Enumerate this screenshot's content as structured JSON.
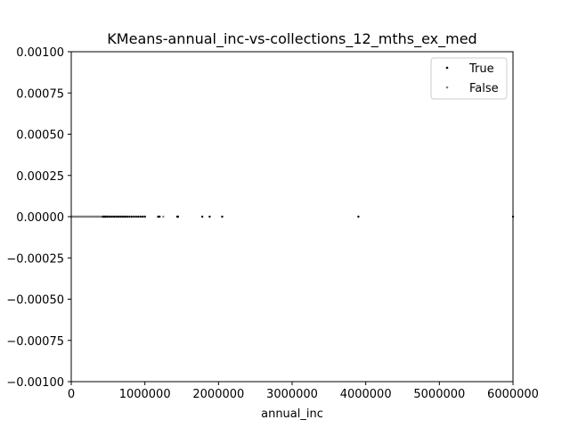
{
  "chart_data": {
    "type": "scatter",
    "title": "KMeans-annual_inc-vs-collections_12_mths_ex_med",
    "xlabel": "annual_inc",
    "ylabel": "",
    "xlim": [
      0,
      6000000
    ],
    "ylim": [
      -0.001,
      0.001
    ],
    "x_ticks": [
      0,
      1000000,
      2000000,
      3000000,
      4000000,
      5000000,
      6000000
    ],
    "x_tick_labels": [
      "0",
      "1000000",
      "2000000",
      "3000000",
      "4000000",
      "5000000",
      "6000000"
    ],
    "y_ticks": [
      0.001,
      0.00075,
      0.0005,
      0.00025,
      0.0,
      -0.00025,
      -0.0005,
      -0.00075,
      -0.001
    ],
    "y_tick_labels": [
      "0.00100",
      "0.00075",
      "0.00050",
      "0.00025",
      "0.00000",
      "−0.00025",
      "−0.00050",
      "−0.00075",
      "−0.00100"
    ],
    "grid": false,
    "legend_position": "upper right",
    "series": [
      {
        "name": "True",
        "color": "#000000",
        "x": [
          430000,
          450000,
          470000,
          490000,
          520000,
          550000,
          580000,
          610000,
          640000,
          670000,
          700000,
          730000,
          760000,
          790000,
          820000,
          850000,
          880000,
          910000,
          940000,
          970000,
          1000000,
          1180000,
          1200000,
          1440000,
          1450000,
          1780000,
          1880000,
          2050000,
          3900000,
          6000000
        ],
        "y": [
          0,
          0,
          0,
          0,
          0,
          0,
          0,
          0,
          0,
          0,
          0,
          0,
          0,
          0,
          0,
          0,
          0,
          0,
          0,
          0,
          0,
          0,
          0,
          0,
          0,
          0,
          0,
          0,
          0,
          0
        ]
      },
      {
        "name": "False",
        "color": "#808080",
        "x": [
          0,
          10000,
          20000,
          30000,
          40000,
          50000,
          60000,
          70000,
          80000,
          90000,
          100000,
          110000,
          120000,
          130000,
          140000,
          150000,
          160000,
          170000,
          180000,
          190000,
          200000,
          210000,
          220000,
          230000,
          240000,
          250000,
          260000,
          270000,
          280000,
          290000,
          300000,
          310000,
          320000,
          330000,
          340000,
          350000,
          360000,
          370000,
          380000,
          390000,
          400000,
          420000,
          440000,
          460000,
          480000,
          500000,
          530000,
          560000,
          590000,
          620000,
          650000,
          680000,
          710000,
          740000,
          1250000
        ],
        "y": [
          0,
          0,
          0,
          0,
          0,
          0,
          0,
          0,
          0,
          0,
          0,
          0,
          0,
          0,
          0,
          0,
          0,
          0,
          0,
          0,
          0,
          0,
          0,
          0,
          0,
          0,
          0,
          0,
          0,
          0,
          0,
          0,
          0,
          0,
          0,
          0,
          0,
          0,
          0,
          0,
          0,
          0,
          0,
          0,
          0,
          0,
          0,
          0,
          0,
          0,
          0,
          0,
          0,
          0,
          0
        ]
      }
    ]
  }
}
